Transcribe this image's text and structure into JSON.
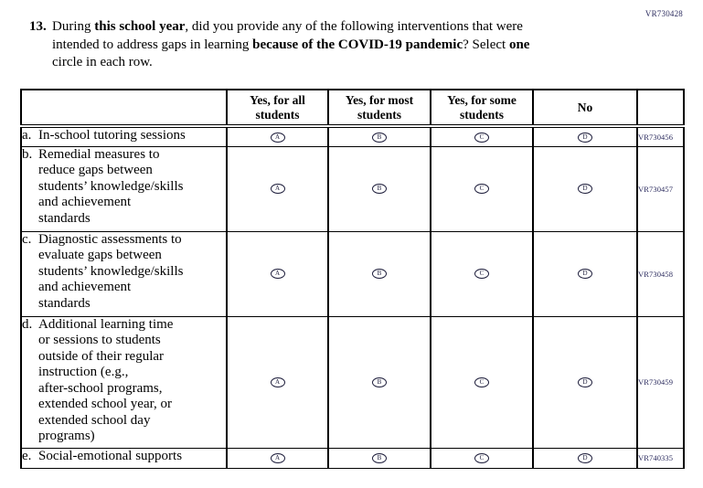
{
  "page": {
    "top_right_code": "VR730428"
  },
  "question": {
    "number": "13.",
    "segments": [
      {
        "text": "During "
      },
      {
        "text": "this school year"
      },
      {
        "text": ", did you provide any of the following interventions that were\nintended to address gaps in learning "
      },
      {
        "text": "because of the COVID-19 pandemic"
      },
      {
        "text": "? Select "
      },
      {
        "text": "one"
      },
      {
        "text": "\ncircle in each row."
      }
    ]
  },
  "table": {
    "columns": [
      "Yes, for all\nstudents",
      "Yes, for most\nstudents",
      "Yes, for some\nstudents",
      "No"
    ],
    "options": [
      "A",
      "B",
      "C",
      "D"
    ],
    "rows": [
      {
        "letter": "a.",
        "label": "In-school tutoring sessions",
        "code": "VR730456"
      },
      {
        "letter": "b.",
        "label": "Remedial measures to\nreduce gaps between\nstudents’ knowledge/skills\nand achievement\nstandards",
        "code": "VR730457"
      },
      {
        "letter": "c.",
        "label": "Diagnostic assessments to\nevaluate gaps between\nstudents’ knowledge/skills\nand achievement\nstandards",
        "code": "VR730458"
      },
      {
        "letter": "d.",
        "label": "Additional learning time\nor sessions to students\noutside of their regular\ninstruction (e.g.,\nafter-school programs,\nextended school year, or\nextended school day\nprograms)",
        "code": "VR730459"
      },
      {
        "letter": "e.",
        "label": "Social-emotional supports",
        "code": "VR740335"
      }
    ]
  }
}
